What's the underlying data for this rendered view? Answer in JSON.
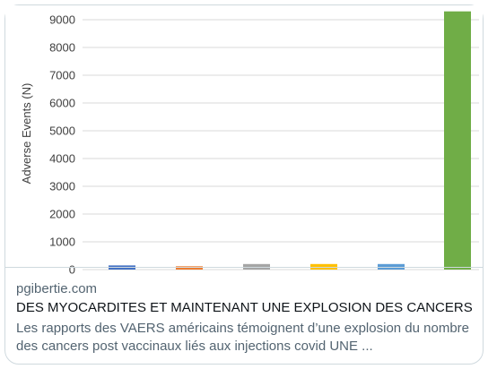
{
  "card": {
    "domain": "pgibertie.com",
    "title": "DES MYOCARDITES ET MAINTENANT UNE EXPLOSION DES CANCERS",
    "description": "Les rapports des VAERS américains témoignent d’une explosion du nombre des cancers post vaccinaux liés aux injections covid UNE ..."
  },
  "chart_data": {
    "type": "bar",
    "ylabel": "Adverse Events (N)",
    "yticks": [
      "0",
      "1000",
      "2000",
      "3000",
      "4000",
      "5000",
      "6000",
      "7000",
      "8000",
      "9000"
    ],
    "ylim": [
      0,
      9000
    ],
    "grid": true,
    "values": [
      150,
      120,
      200,
      200,
      200,
      9300
    ],
    "colors": [
      "#4472c4",
      "#ed7d31",
      "#a5a5a5",
      "#ffc000",
      "#5b9bd5",
      "#70ad47"
    ]
  }
}
